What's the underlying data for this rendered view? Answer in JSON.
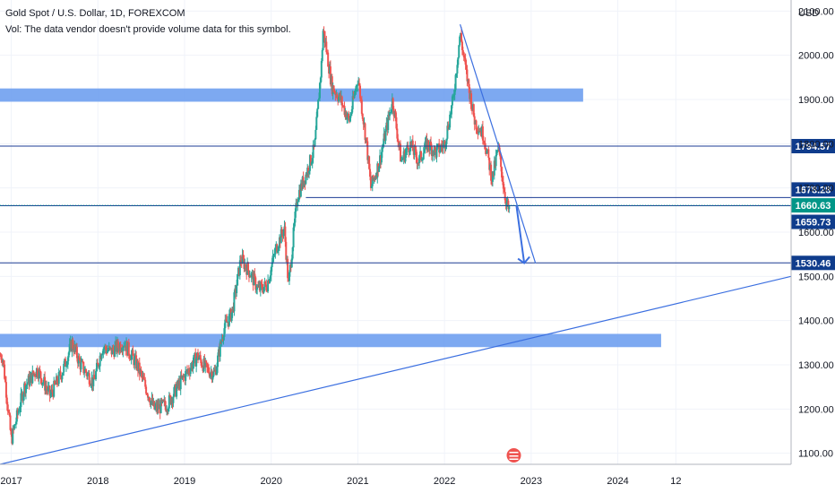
{
  "legend": {
    "title": "Gold Spot / U.S. Dollar, 1D, FOREXCOM",
    "volume_note": "Vol: The data vendor doesn't provide volume data for this symbol."
  },
  "currency_label": "USD",
  "colors": {
    "up_candle": "#26a69a",
    "down_candle": "#ef5350",
    "zone_fill": "#6fa0f0",
    "line": "#1c3d94",
    "trend": "#3b6fe0",
    "current_label": "#009688",
    "label_bg": "#0f3c8c"
  },
  "chart_data": {
    "type": "candlestick",
    "title": "Gold Spot / U.S. Dollar, 1D, FOREXCOM",
    "ylabel": "USD",
    "x_ticks": [
      "2017",
      "2018",
      "2019",
      "2020",
      "2021",
      "2022",
      "2023",
      "2024",
      "12"
    ],
    "y_ticks": [
      "1100.00",
      "1200.00",
      "1300.00",
      "1400.00",
      "1500.00",
      "1600.00",
      "1700.00",
      "1800.00",
      "1900.00",
      "2000.00",
      "2100.00"
    ],
    "ylim": [
      1075,
      2125
    ],
    "xlim": [
      2016.87,
      2026.0
    ],
    "price_path": [
      [
        2016.9,
        1320
      ],
      [
        2017.0,
        1130
      ],
      [
        2017.15,
        1250
      ],
      [
        2017.3,
        1290
      ],
      [
        2017.45,
        1230
      ],
      [
        2017.6,
        1290
      ],
      [
        2017.7,
        1350
      ],
      [
        2017.8,
        1300
      ],
      [
        2017.95,
        1260
      ],
      [
        2018.05,
        1340
      ],
      [
        2018.15,
        1330
      ],
      [
        2018.3,
        1350
      ],
      [
        2018.45,
        1300
      ],
      [
        2018.55,
        1250
      ],
      [
        2018.65,
        1200
      ],
      [
        2018.8,
        1210
      ],
      [
        2018.95,
        1260
      ],
      [
        2019.05,
        1290
      ],
      [
        2019.15,
        1320
      ],
      [
        2019.25,
        1290
      ],
      [
        2019.35,
        1280
      ],
      [
        2019.45,
        1380
      ],
      [
        2019.55,
        1420
      ],
      [
        2019.65,
        1540
      ],
      [
        2019.75,
        1510
      ],
      [
        2019.85,
        1470
      ],
      [
        2019.95,
        1480
      ],
      [
        2020.05,
        1560
      ],
      [
        2020.15,
        1610
      ],
      [
        2020.2,
        1480
      ],
      [
        2020.3,
        1680
      ],
      [
        2020.4,
        1730
      ],
      [
        2020.5,
        1790
      ],
      [
        2020.58,
        1980
      ],
      [
        2020.6,
        2060
      ],
      [
        2020.7,
        1930
      ],
      [
        2020.8,
        1900
      ],
      [
        2020.9,
        1850
      ],
      [
        2021.0,
        1950
      ],
      [
        2021.1,
        1800
      ],
      [
        2021.15,
        1700
      ],
      [
        2021.25,
        1760
      ],
      [
        2021.4,
        1900
      ],
      [
        2021.5,
        1760
      ],
      [
        2021.6,
        1800
      ],
      [
        2021.7,
        1760
      ],
      [
        2021.8,
        1800
      ],
      [
        2021.9,
        1780
      ],
      [
        2022.0,
        1800
      ],
      [
        2022.1,
        1900
      ],
      [
        2022.18,
        2050
      ],
      [
        2022.25,
        1960
      ],
      [
        2022.35,
        1850
      ],
      [
        2022.45,
        1820
      ],
      [
        2022.55,
        1720
      ],
      [
        2022.62,
        1790
      ],
      [
        2022.7,
        1680
      ],
      [
        2022.75,
        1640
      ]
    ],
    "horizontal_lines": [
      {
        "price": 1794.57,
        "label": "1794.57"
      },
      {
        "price": 1678.28,
        "label": "1678.28"
      },
      {
        "price": 1659.73,
        "label": "1659.73"
      },
      {
        "price": 1530.46,
        "label": "1530.46"
      }
    ],
    "current_price": {
      "price": 1660.63,
      "label": "1660.63"
    },
    "support_line": {
      "price": 1678.28,
      "x_start": 2020.4
    },
    "zones": [
      {
        "price_low": 1895,
        "price_high": 1925,
        "x_end": 2023.6
      },
      {
        "price_low": 1340,
        "price_high": 1370,
        "x_end": 2024.5
      }
    ],
    "trendlines": [
      {
        "from": [
          2016.87,
          1075
        ],
        "to": [
          2026.0,
          1500
        ]
      },
      {
        "from": [
          2022.18,
          2070
        ],
        "to": [
          2023.05,
          1530
        ]
      }
    ],
    "forecast_arrow": {
      "from": [
        2022.83,
        1660
      ],
      "to": [
        2022.92,
        1530
      ]
    }
  }
}
